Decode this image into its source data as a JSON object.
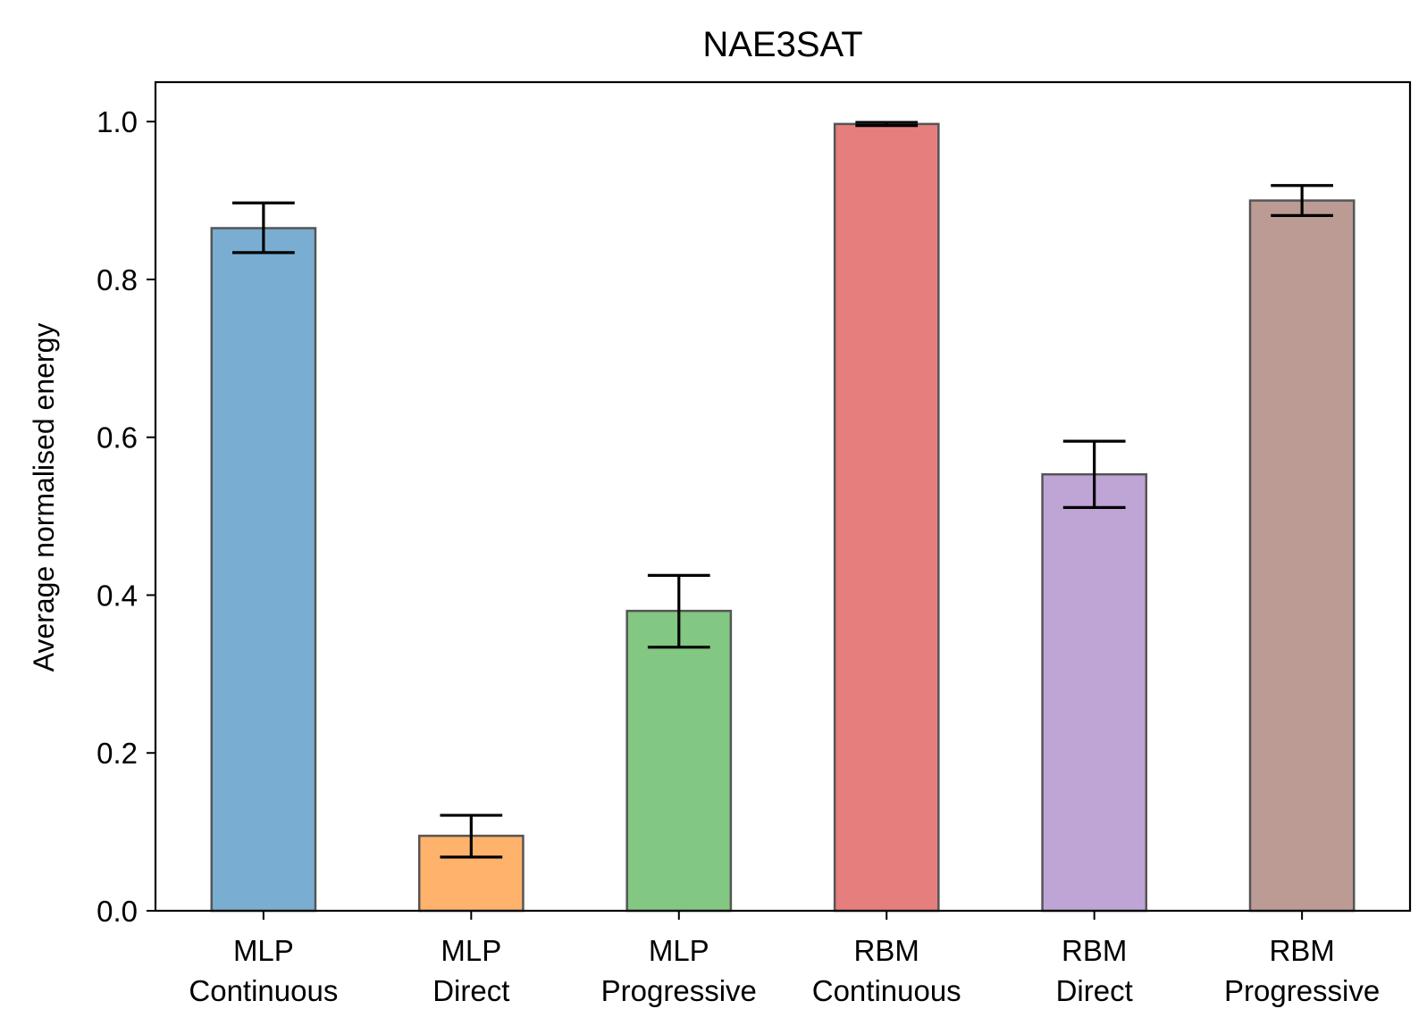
{
  "chart_data": {
    "type": "bar",
    "title": "NAE3SAT",
    "xlabel": "",
    "ylabel": "Average normalised energy",
    "ylim": [
      0,
      1.05
    ],
    "yticks": [
      "0.0",
      "0.2",
      "0.4",
      "0.6",
      "0.8",
      "1.0"
    ],
    "grid": false,
    "categories": [
      [
        "MLP",
        "Continuous"
      ],
      [
        "MLP",
        "Direct"
      ],
      [
        "MLP",
        "Progressive"
      ],
      [
        "RBM",
        "Continuous"
      ],
      [
        "RBM",
        "Direct"
      ],
      [
        "RBM",
        "Progressive"
      ]
    ],
    "values": [
      0.865,
      0.095,
      0.38,
      0.997,
      0.553,
      0.9
    ],
    "errors": [
      [
        0.834,
        0.897
      ],
      [
        0.068,
        0.121
      ],
      [
        0.334,
        0.425
      ],
      [
        0.995,
        0.999
      ],
      [
        0.511,
        0.595
      ],
      [
        0.881,
        0.919
      ]
    ],
    "colors": [
      "#7aadd2",
      "#ffb26c",
      "#82c782",
      "#e67e7e",
      "#bfa5d6",
      "#bb9b94"
    ],
    "edge_color": "#555555",
    "error_color": "#000000"
  }
}
